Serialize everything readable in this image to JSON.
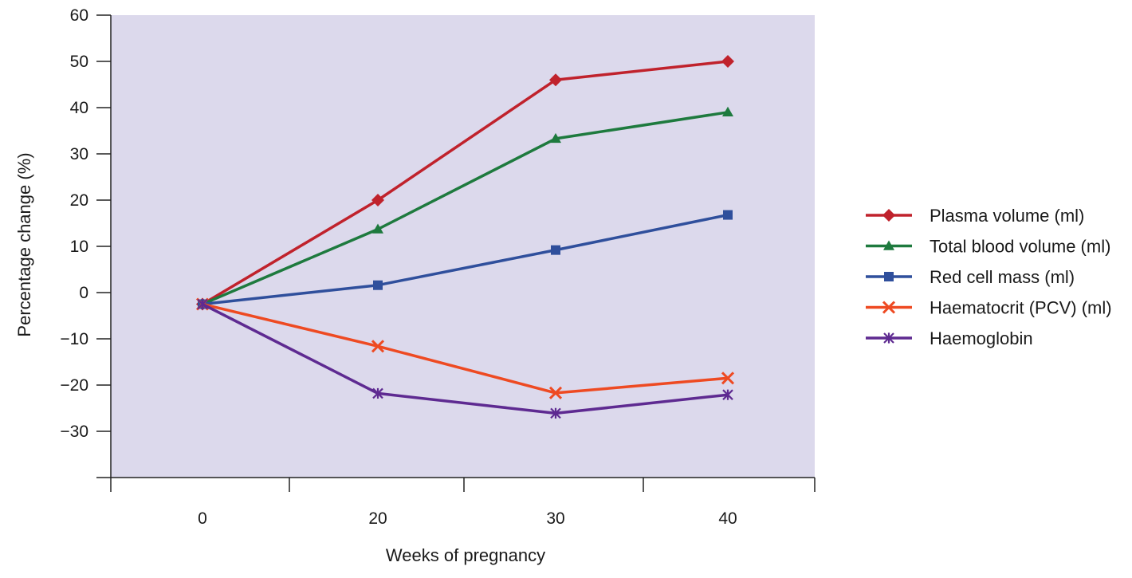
{
  "chart_data": {
    "type": "line",
    "title": "",
    "xlabel": "Weeks of pregnancy",
    "ylabel": "Percentage change (%)",
    "ylim": [
      -40,
      60
    ],
    "y_ticks": [
      60,
      50,
      40,
      30,
      20,
      10,
      0,
      -10,
      -20,
      -30
    ],
    "y_tick_labels": [
      "60",
      "50",
      "40",
      "30",
      "20",
      "10",
      "0",
      "−10",
      "−20",
      "−30"
    ],
    "categories": [
      "0",
      "20",
      "30",
      "40"
    ],
    "grid": false,
    "plot_background": "#dcd9ec",
    "legend_position": "right",
    "series": [
      {
        "name": "Plasma volume (ml)",
        "color": "#c0222c",
        "marker": "diamond",
        "values": [
          -2.5,
          20,
          46,
          50
        ]
      },
      {
        "name": "Total blood volume (ml)",
        "color": "#1e7a3e",
        "marker": "triangle",
        "values": [
          -2.5,
          13.7,
          33.3,
          39
        ]
      },
      {
        "name": "Red cell mass (ml)",
        "color": "#2f4f9c",
        "marker": "square",
        "values": [
          -2.5,
          1.6,
          9.2,
          16.8
        ]
      },
      {
        "name": "Haematocrit (PCV) (ml)",
        "color": "#ee4a22",
        "marker": "x",
        "values": [
          -2.5,
          -11.6,
          -21.7,
          -18.5
        ]
      },
      {
        "name": "Haemoglobin",
        "color": "#5e2a91",
        "marker": "star",
        "values": [
          -2.5,
          -21.8,
          -26.1,
          -22.1
        ]
      }
    ]
  }
}
